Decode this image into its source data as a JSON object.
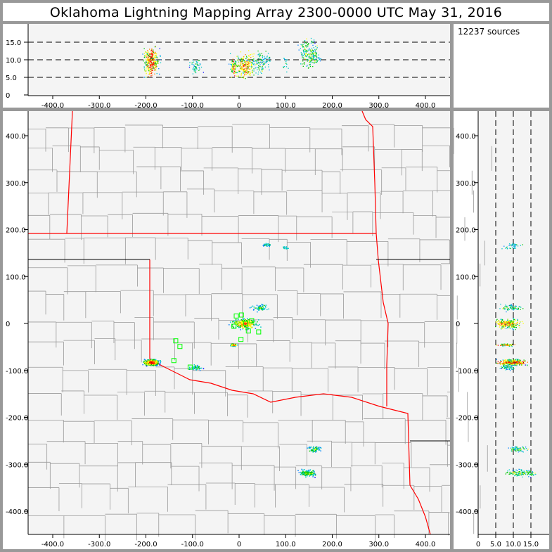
{
  "title": "Oklahoma Lightning Mapping Array   2300-0000 UTC  May 31, 2016",
  "sources_label": "12237 sources",
  "colors": {
    "background": "#999999",
    "panel": "#f4f4f4",
    "state_border": "#ff0000",
    "border_black": "#000000",
    "county": "#9a9a9a",
    "station": "#00ff00",
    "density_scale": [
      "#0000ff",
      "#0080ff",
      "#00c8c8",
      "#00c800",
      "#ffff00",
      "#ff8000",
      "#ff0000",
      "#800000"
    ]
  },
  "chart_data": {
    "type": "scatter",
    "plan_view": {
      "xlim": [
        -450,
        450
      ],
      "ylim": [
        -450,
        450
      ],
      "xticks": [
        "-400.0",
        "-300.0",
        "-200.0",
        "-100.0",
        "0",
        "100.0",
        "200.0",
        "300.0",
        "400.0"
      ],
      "yticks": [
        "400.0",
        "300.0",
        "200.0",
        "100.0",
        "0",
        "-100.0",
        "-200.0",
        "-300.0",
        "-400.0"
      ]
    },
    "altitude_x_view": {
      "xlim": [
        -450,
        450
      ],
      "ylim": [
        0,
        20
      ],
      "yticks": [
        "15.0",
        "10.0",
        "5.0",
        "0"
      ],
      "xticks": [
        "-400.0",
        "-300.0",
        "-200.0",
        "-100.0",
        "0",
        "100.0",
        "200.0",
        "300.0",
        "400.0"
      ],
      "gridlines_km": [
        5,
        10,
        15
      ]
    },
    "altitude_y_view": {
      "xlim": [
        0,
        20
      ],
      "ylim": [
        -450,
        450
      ],
      "xticks": [
        "0",
        "5.0",
        "10.0",
        "15.0"
      ],
      "yticks": [
        "400.0",
        "300.0",
        "200.0",
        "100.0",
        "0",
        "-100.0",
        "-200.0",
        "-300.0",
        "-400.0"
      ],
      "gridlines_km": [
        5,
        10,
        15
      ]
    },
    "source_clusters_km": [
      {
        "x": -189,
        "y": -82,
        "alt": 9.5,
        "spread": 7,
        "alt_spread": 2.5,
        "count": 320,
        "intensity": 1.0
      },
      {
        "x": -94,
        "y": -93,
        "alt": 8,
        "spread": 6,
        "alt_spread": 1.5,
        "count": 50,
        "intensity": 0.3
      },
      {
        "x": 12,
        "y": 0,
        "alt": 8.5,
        "spread": 12,
        "alt_spread": 2.5,
        "count": 260,
        "intensity": 0.8
      },
      {
        "x": 45,
        "y": 34,
        "alt": 9,
        "spread": 8,
        "alt_spread": 2,
        "count": 70,
        "intensity": 0.4
      },
      {
        "x": -12,
        "y": -45,
        "alt": 8,
        "spread": 3,
        "alt_spread": 1.5,
        "count": 60,
        "intensity": 0.9
      },
      {
        "x": 161,
        "y": -267,
        "alt": 11,
        "spread": 6,
        "alt_spread": 2,
        "count": 70,
        "intensity": 0.4
      },
      {
        "x": 146,
        "y": -318,
        "alt": 12,
        "spread": 8,
        "alt_spread": 2.5,
        "count": 130,
        "intensity": 0.5
      },
      {
        "x": 60,
        "y": 168,
        "alt": 10,
        "spread": 4,
        "alt_spread": 1.5,
        "count": 25,
        "intensity": 0.3
      },
      {
        "x": 98,
        "y": 162,
        "alt": 9,
        "spread": 4,
        "alt_spread": 1.5,
        "count": 15,
        "intensity": 0.2
      }
    ],
    "stations_km": [
      [
        -6,
        16
      ],
      [
        -11,
        -6
      ],
      [
        14,
        0
      ],
      [
        20,
        -16
      ],
      [
        42,
        -18
      ],
      [
        4,
        -34
      ],
      [
        27,
        6
      ],
      [
        -136,
        -37
      ],
      [
        -127,
        -49
      ],
      [
        -140,
        -79
      ],
      [
        -105,
        -93
      ],
      [
        5,
        18
      ]
    ]
  }
}
